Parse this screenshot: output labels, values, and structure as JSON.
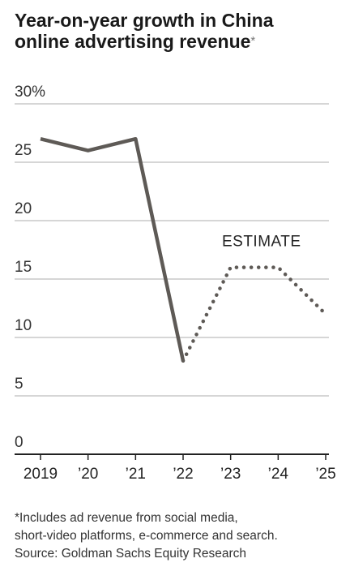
{
  "header": {
    "title_line1": "Year-on-year growth in China",
    "title_line2": "online advertising revenue",
    "title_mark": "*"
  },
  "footer": {
    "note_line1": "*Includes ad revenue from social media,",
    "note_line2": "short-video platforms, e-commerce and search.",
    "source": "Source: Goldman Sachs Equity Research"
  },
  "chart_data": {
    "type": "line",
    "title": "Year-on-year growth in China online advertising revenue",
    "categories": [
      "2019",
      "’20",
      "’21",
      "’22",
      "’23",
      "’24",
      "’25"
    ],
    "x": [
      2019,
      2020,
      2021,
      2022,
      2023,
      2024,
      2025
    ],
    "series": [
      {
        "name": "",
        "style": "solid",
        "x": [
          2019,
          2020,
          2021,
          2022
        ],
        "values": [
          27,
          26,
          27,
          8
        ]
      },
      {
        "name": "ESTIMATE",
        "style": "dotted",
        "x": [
          2022,
          2023,
          2024,
          2025
        ],
        "values": [
          8,
          16,
          16,
          12
        ]
      }
    ],
    "y_ticks": [
      "30%",
      "25",
      "20",
      "15",
      "10",
      "5",
      "0"
    ],
    "y_tick_values": [
      30,
      25,
      20,
      15,
      10,
      5,
      0
    ],
    "ylim": [
      0,
      30
    ],
    "xlim": [
      2019,
      2025
    ],
    "annotations": [
      {
        "text": "ESTIMATE"
      }
    ],
    "grid": true,
    "colors": {
      "line": "#5e5a56",
      "grid": "#c9c9c9",
      "axis": "#222222"
    }
  }
}
